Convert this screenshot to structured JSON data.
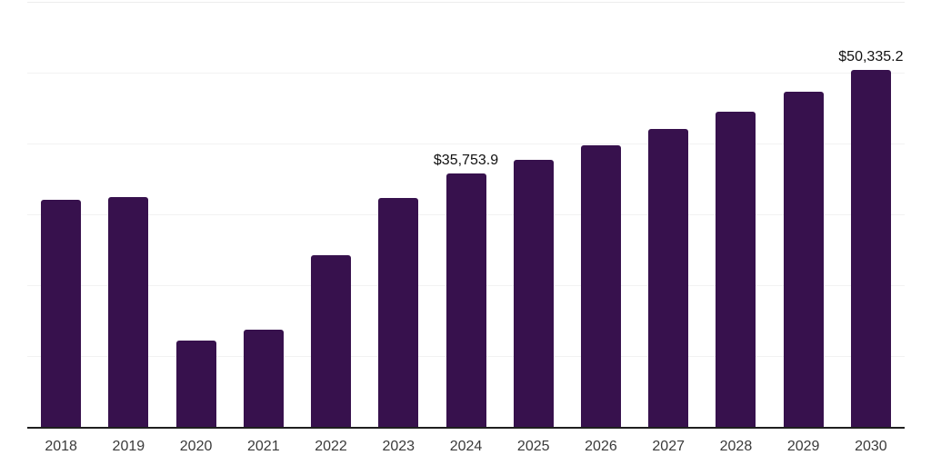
{
  "chart_data": {
    "type": "bar",
    "title": "",
    "xlabel": "",
    "ylabel": "",
    "categories": [
      "2018",
      "2019",
      "2020",
      "2021",
      "2022",
      "2023",
      "2024",
      "2025",
      "2026",
      "2027",
      "2028",
      "2029",
      "2030"
    ],
    "values": [
      32030,
      32450,
      12200,
      13730,
      24270,
      32370,
      35753.9,
      37690,
      39730,
      42020,
      44480,
      47310,
      50335.2
    ],
    "data_labels": [
      "",
      "",
      "",
      "",
      "",
      "",
      "$35,753.9",
      "",
      "",
      "",
      "",
      "",
      "$50,335.2"
    ],
    "ylim": [
      0,
      60000
    ],
    "ytick_interval": 10000,
    "grid": "horizontal",
    "y_tick_labels_visible": false,
    "legend": "none"
  },
  "style": {
    "bar_color": "#37114d",
    "axis_line_color": "#1f1f1f",
    "gridline_color": "#f2f2f2",
    "top_gridline_color": "#ececec",
    "tick_label_color": "#3a3a3a",
    "data_label_color": "#111111",
    "background": "#ffffff"
  }
}
